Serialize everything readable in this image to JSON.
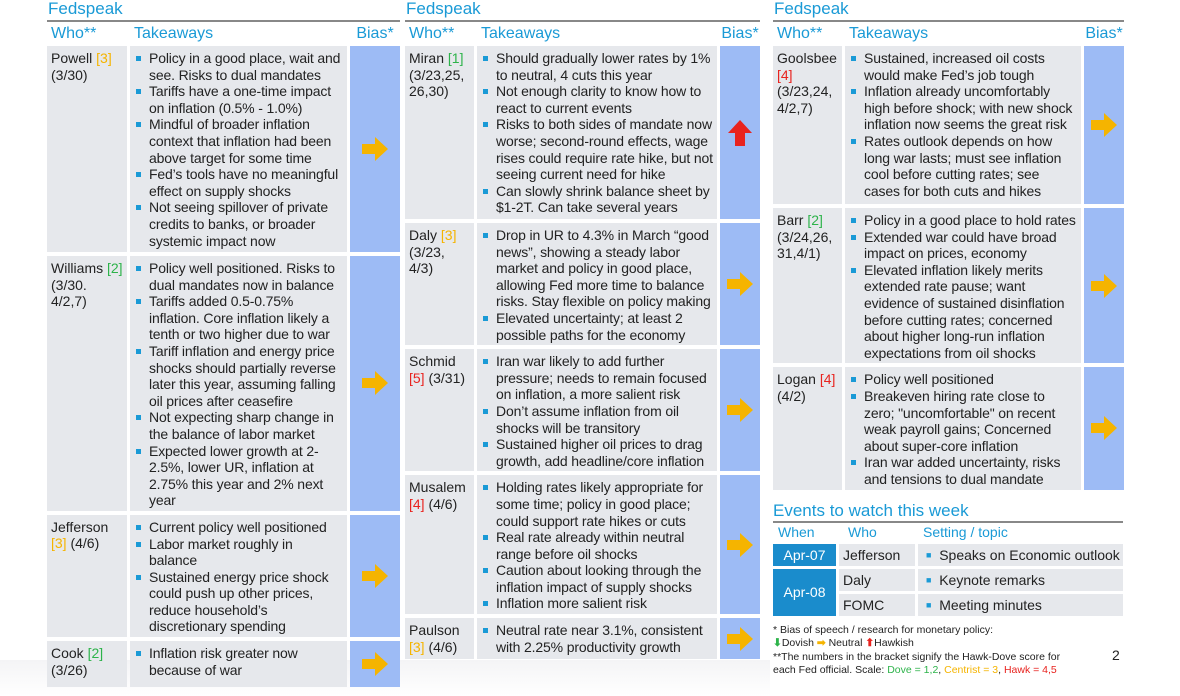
{
  "colors": {
    "accent": "#1a9ad6",
    "bias_bg": "#9dbbf5",
    "cell_bg": "#e6e8ec",
    "dove": "#2db34a",
    "centrist": "#f5b400",
    "hawk": "#e8231f"
  },
  "panels": [
    {
      "title": "Fedspeak",
      "headers": {
        "who": "Who**",
        "takeaways": "Takeaways",
        "bias": "Bias*"
      },
      "rows": [
        {
          "name": "Powell",
          "score": "[3]",
          "dates": "(3/30)",
          "bias": "neutral",
          "bullets": [
            "Policy in a good place, wait and see. Risks to dual mandates",
            "Tariffs have a one-time impact on inflation (0.5% - 1.0%)",
            "Mindful of broader inflation context that inflation had been above target for some time",
            "Fed’s tools have no meaningful effect on supply shocks",
            "Not seeing spillover of private credits to banks, or broader systemic impact now"
          ]
        },
        {
          "name": "Williams",
          "score": "[2]",
          "dates": "(3/30. 4/2,7)",
          "bias": "neutral",
          "bullets": [
            "Policy well positioned. Risks to dual mandates now in balance",
            "Tariffs added 0.5-0.75% inflation. Core inflation likely a tenth or two higher due to war",
            "Tariff inflation and energy price shocks should partially reverse later this year, assuming falling oil prices after ceasefire",
            "Not expecting sharp change in the balance of labor market",
            "Expected lower growth at 2-2.5%, lower UR, inflation at 2.75% this year and 2% next year"
          ]
        },
        {
          "name": "Jefferson",
          "score": "[3]",
          "dates": "(4/6)",
          "bias": "neutral",
          "bullets": [
            "Current policy well positioned",
            "Labor market roughly in balance",
            "Sustained energy price shock could push up other prices, reduce household’s discretionary spending"
          ]
        },
        {
          "name": "Cook",
          "score": "[2]",
          "dates": "(3/26)",
          "bias": "neutral",
          "bullets": [
            "Inflation risk greater now because of war"
          ]
        }
      ]
    },
    {
      "title": "Fedspeak",
      "headers": {
        "who": "Who**",
        "takeaways": "Takeaways",
        "bias": "Bias*"
      },
      "rows": [
        {
          "name": "Miran",
          "score": "[1]",
          "dates": "(3/23,25, 26,30)",
          "bias": "hawkish",
          "bullets": [
            "Should gradually lower rates by 1% to neutral, 4 cuts this year",
            "Not enough clarity to know how to react to current events",
            "Risks to both sides of mandate now worse; second-round effects, wage rises could require rate hike, but not seeing current need for hike",
            "Can slowly shrink balance sheet by $1-2T. Can take several years"
          ]
        },
        {
          "name": "Daly",
          "score": "[3]",
          "dates": "(3/23, 4/3)",
          "bias": "neutral",
          "bullets": [
            "Drop in UR to 4.3% in March “good news”, showing a steady labor market and policy in good place, allowing Fed more time to balance risks. Stay flexible on policy making",
            "Elevated uncertainty; at least 2 possible paths for the economy"
          ]
        },
        {
          "name": "Schmid",
          "score": "[5]",
          "dates": "(3/31)",
          "bias": "neutral",
          "bullets": [
            "Iran war likely to add further pressure; needs to remain focused on inflation, a more salient risk",
            "Don’t assume inflation from oil shocks will be transitory",
            "Sustained higher oil prices to drag growth, add headline/core inflation"
          ]
        },
        {
          "name": "Musalem",
          "score": "[4]",
          "dates": "(4/6)",
          "bias": "neutral",
          "bullets": [
            "Holding rates likely appropriate for some time; policy in good place; could support rate hikes or cuts",
            "Real rate already within neutral range before oil shocks",
            "Caution about looking through the inflation impact of supply shocks",
            "Inflation more salient risk"
          ]
        },
        {
          "name": "Paulson",
          "score": "[3]",
          "dates": "(4/6)",
          "bias": "neutral",
          "bullets": [
            "Neutral rate near 3.1%, consistent with 2.25% productivity growth"
          ]
        }
      ]
    },
    {
      "title": "Fedspeak",
      "headers": {
        "who": "Who**",
        "takeaways": "Takeaways",
        "bias": "Bias*"
      },
      "rows": [
        {
          "name": "Goolsbee",
          "score": "[4]",
          "dates": "(3/23,24, 4/2,7)",
          "bias": "neutral",
          "bullets": [
            "Sustained, increased oil costs would make Fed’s job tough",
            "Inflation already uncomfortably high before shock; with new shock inflation now seems the great risk",
            "Rates outlook depends on how long war lasts; must see inflation cool before cutting rates; see cases for both cuts and hikes"
          ]
        },
        {
          "name": "Barr",
          "score": "[2]",
          "dates": "(3/24,26, 31,4/1)",
          "bias": "neutral",
          "bullets": [
            "Policy in a good place to hold rates",
            "Extended war could have broad impact on prices, economy",
            "Elevated inflation likely merits extended rate pause; want evidence of sustained disinflation before cutting rates; concerned about higher long-run inflation expectations from oil shocks"
          ]
        },
        {
          "name": "Logan",
          "score": "[4]",
          "dates": "(4/2)",
          "bias": "neutral",
          "bullets": [
            "Policy well positioned",
            "Breakeven hiring rate close to zero; \"uncomfortable\" on recent weak payroll gains; Concerned about super-core inflation",
            "Iran war added uncertainty, risks and tensions to dual mandate"
          ]
        }
      ]
    }
  ],
  "events": {
    "title": "Events to watch this week",
    "headers": {
      "when": "When",
      "who": "Who",
      "topic": "Setting / topic"
    },
    "rows": [
      {
        "when": "Apr-07",
        "who": "Jefferson",
        "topic": "Speaks on Economic outlook"
      },
      {
        "when": "Apr-08",
        "who": "Daly",
        "topic": "Keynote remarks"
      },
      {
        "when": "",
        "who": "FOMC",
        "topic": "Meeting minutes"
      }
    ]
  },
  "footnote": {
    "line1": "* Bias of speech / research for monetary policy:",
    "dovish": "Dovish",
    "neutral": "Neutral",
    "hawkish": "Hawkish",
    "line2": "**The numbers in the bracket signify the Hawk-Dove score for each Fed official. Scale: ",
    "dove": "Dove = 1,2",
    "sep1": ", ",
    "centrist": "Centrist = 3",
    "sep2": ", ",
    "hawk": "Hawk = 4,5"
  },
  "page_number": "2"
}
